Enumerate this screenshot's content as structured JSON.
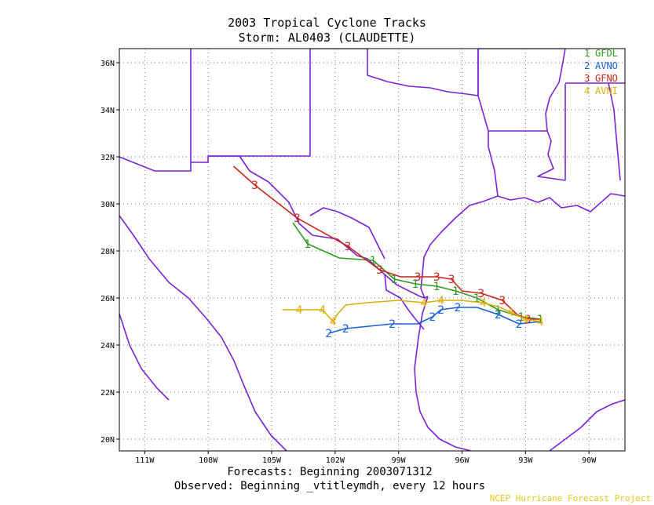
{
  "title": "2003 Tropical Cyclone Tracks",
  "subtitle": "Storm: AL0403 (CLAUDETTE)",
  "footer_forecasts": "Forecasts: Beginning 2003071312",
  "footer_observed": "Observed: Beginning _vtitleymdh, every 12 hours",
  "credit": "NCEP Hurricane Forecast Project",
  "colors": {
    "border": "#7b22d6",
    "grid": "#707070"
  },
  "legend": [
    {
      "num": "1",
      "name": "GFDL",
      "color": "#2e9a1e"
    },
    {
      "num": "2",
      "name": "AVNO",
      "color": "#1a5fd6"
    },
    {
      "num": "3",
      "name": "GFNO",
      "color": "#c8261a"
    },
    {
      "num": "4",
      "name": "AVNI",
      "color": "#dcae0a"
    }
  ],
  "axes": {
    "x_ticks": [
      "111W",
      "108W",
      "105W",
      "102W",
      "99W",
      "96W",
      "93W",
      "90W"
    ],
    "y_ticks": [
      "36N",
      "34N",
      "32N",
      "30N",
      "28N",
      "26N",
      "24N",
      "22N",
      "20N"
    ]
  },
  "tracks": [
    {
      "model": "GFDL",
      "marker": "1",
      "color": "#2e9a1e",
      "points": [
        [
          -92.3,
          25.1
        ],
        [
          -93.2,
          25.2
        ],
        [
          -94.3,
          25.5
        ],
        [
          -95.3,
          26.0
        ],
        [
          -96.3,
          26.3
        ],
        [
          -97.2,
          26.5
        ],
        [
          -98.2,
          26.6
        ],
        [
          -99.2,
          26.8
        ],
        [
          -100.2,
          27.6
        ],
        [
          -101.8,
          27.7
        ],
        [
          -103.3,
          28.3
        ],
        [
          -104.0,
          29.2
        ]
      ],
      "marked": [
        0,
        1,
        2,
        3,
        4,
        5,
        6,
        7,
        8,
        10
      ]
    },
    {
      "model": "AVNO",
      "marker": "2",
      "color": "#1a5fd6",
      "points": [
        [
          -92.3,
          25.0
        ],
        [
          -93.3,
          24.9
        ],
        [
          -94.3,
          25.3
        ],
        [
          -95.3,
          25.6
        ],
        [
          -96.2,
          25.6
        ],
        [
          -97.0,
          25.5
        ],
        [
          -97.4,
          25.2
        ],
        [
          -98.1,
          24.9
        ],
        [
          -99.3,
          24.9
        ],
        [
          -100.4,
          24.8
        ],
        [
          -101.5,
          24.7
        ],
        [
          -102.3,
          24.5
        ]
      ],
      "marked": [
        1,
        2,
        4,
        5,
        6,
        8,
        10,
        11
      ]
    },
    {
      "model": "GFNO",
      "marker": "3",
      "color": "#c8261a",
      "points": [
        [
          -92.3,
          25.1
        ],
        [
          -92.9,
          25.1
        ],
        [
          -93.4,
          25.3
        ],
        [
          -94.1,
          25.9
        ],
        [
          -95.1,
          26.2
        ],
        [
          -96.0,
          26.3
        ],
        [
          -96.5,
          26.8
        ],
        [
          -97.2,
          26.9
        ],
        [
          -98.1,
          26.9
        ],
        [
          -98.9,
          26.9
        ],
        [
          -99.9,
          27.2
        ],
        [
          -101.4,
          28.2
        ],
        [
          -103.8,
          29.4
        ],
        [
          -105.8,
          30.8
        ],
        [
          -106.8,
          31.6
        ]
      ],
      "marked": [
        1,
        3,
        4,
        6,
        7,
        8,
        10,
        11,
        12,
        13
      ]
    },
    {
      "model": "AVNI",
      "marker": "4",
      "color": "#dcae0a",
      "points": [
        [
          -92.3,
          25.0
        ],
        [
          -93.0,
          25.1
        ],
        [
          -93.7,
          25.4
        ],
        [
          -94.2,
          25.6
        ],
        [
          -95.0,
          25.8
        ],
        [
          -96.1,
          25.9
        ],
        [
          -97.0,
          25.9
        ],
        [
          -97.8,
          25.8
        ],
        [
          -99.0,
          25.9
        ],
        [
          -100.5,
          25.8
        ],
        [
          -101.5,
          25.7
        ],
        [
          -101.9,
          25.3
        ],
        [
          -102.1,
          25.0
        ],
        [
          -102.6,
          25.5
        ],
        [
          -103.7,
          25.5
        ],
        [
          -104.5,
          25.5
        ]
      ],
      "marked": [
        0,
        1,
        2,
        4,
        6,
        7,
        12,
        13,
        14
      ]
    }
  ]
}
